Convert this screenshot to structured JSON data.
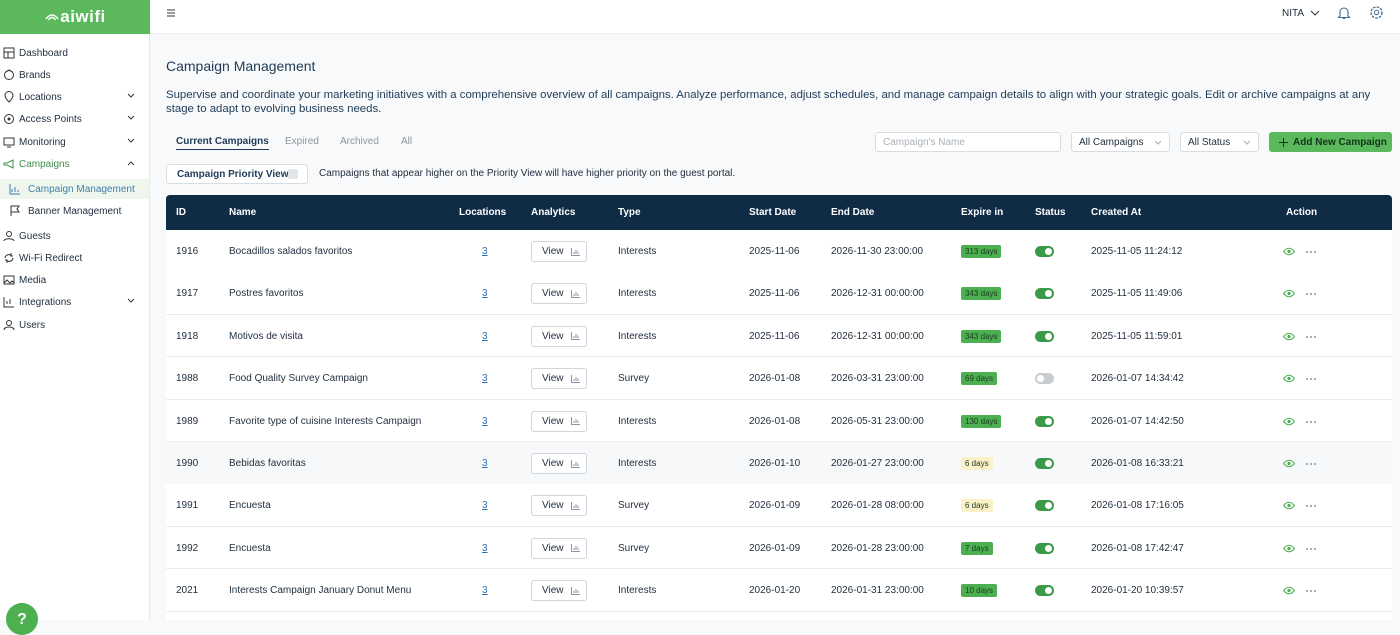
{
  "sidebar": {
    "logo": "aiwifi",
    "items": [
      "Dashboard",
      "Brands",
      "Locations",
      "Access Points",
      "Monitoring",
      "Campaigns",
      "Campaign Management",
      "Banner Management",
      "Guests",
      "Wi-Fi Redirect",
      "Media",
      "Integrations",
      "Users"
    ]
  },
  "topbar": {
    "user": "NITA"
  },
  "header": {
    "title": "Campaign Management",
    "description": "Supervise and coordinate your marketing initiatives with a comprehensive overview of all campaigns. Analyze performance, adjust schedules, and manage campaign details to align with your strategic goals. Edit or archive campaigns at any stage to adapt to evolving business needs."
  },
  "tabs": [
    "Current Campaigns",
    "Expired",
    "Archived",
    "All"
  ],
  "filters": {
    "search_placeholder": "Campaign's Name",
    "campaign_select": "All Campaigns",
    "status_select": "All Status",
    "add_button": "Add New Campaign"
  },
  "priority": {
    "button": "Campaign Priority View",
    "note": "Campaigns that appear higher on the Priority View will have higher priority on the guest portal."
  },
  "table": {
    "columns": [
      "ID",
      "Name",
      "Locations",
      "Analytics",
      "Type",
      "Start Date",
      "End Date",
      "Expire in",
      "Status",
      "Created At",
      "Action"
    ],
    "rows": [
      {
        "id": 1916,
        "name": "Bocadillos salados favoritos",
        "locations": 3,
        "analytics": "View",
        "type": "Interests",
        "start": "2025-11-06",
        "end": "2026-11-30 23:00:00",
        "expire": "313 days",
        "expire_color": "#4caf50",
        "status": true,
        "created": "2025-11-05 11:24:12"
      },
      {
        "id": 1917,
        "name": "Postres favoritos",
        "locations": 3,
        "analytics": "View",
        "type": "Interests",
        "start": "2025-11-06",
        "end": "2026-12-31 00:00:00",
        "expire": "343 days",
        "expire_color": "#4caf50",
        "status": true,
        "created": "2025-11-05 11:49:06"
      },
      {
        "id": 1918,
        "name": "Motivos de visita",
        "locations": 3,
        "analytics": "View",
        "type": "Interests",
        "start": "2025-11-06",
        "end": "2026-12-31 00:00:00",
        "expire": "343 days",
        "expire_color": "#4caf50",
        "status": true,
        "created": "2025-11-05 11:59:01"
      },
      {
        "id": 1988,
        "name": "Food Quality Survey Campaign",
        "locations": 3,
        "analytics": "View",
        "type": "Survey",
        "start": "2026-01-08",
        "end": "2026-03-31 23:00:00",
        "expire": "69 days",
        "expire_color": "#4caf50",
        "status": false,
        "created": "2026-01-07 14:34:42"
      },
      {
        "id": 1989,
        "name": "Favorite type of cuisine Interests Campaign",
        "locations": 3,
        "analytics": "View",
        "type": "Interests",
        "start": "2026-01-08",
        "end": "2026-05-31 23:00:00",
        "expire": "130 days",
        "expire_color": "#4caf50",
        "status": true,
        "created": "2026-01-07 14:42:50"
      },
      {
        "id": 1990,
        "name": "Bebidas favoritas",
        "locations": 3,
        "analytics": "View",
        "type": "Interests",
        "start": "2026-01-10",
        "end": "2026-01-27 23:00:00",
        "expire": "6 days",
        "expire_color": "#fbf1c7",
        "status": true,
        "created": "2026-01-08 16:33:21"
      },
      {
        "id": 1991,
        "name": "Encuesta",
        "locations": 3,
        "analytics": "View",
        "type": "Survey",
        "start": "2026-01-09",
        "end": "2026-01-28 08:00:00",
        "expire": "6 days",
        "expire_color": "#fbf1c7",
        "status": true,
        "created": "2026-01-08 17:16:05"
      },
      {
        "id": 1992,
        "name": "Encuesta",
        "locations": 3,
        "analytics": "View",
        "type": "Survey",
        "start": "2026-01-09",
        "end": "2026-01-28 23:00:00",
        "expire": "7 days",
        "expire_color": "#4caf50",
        "status": true,
        "created": "2026-01-08 17:42:47"
      },
      {
        "id": 2021,
        "name": "Interests Campaign January Donut Menu",
        "locations": 3,
        "analytics": "View",
        "type": "Interests",
        "start": "2026-01-20",
        "end": "2026-01-31 23:00:00",
        "expire": "10 days",
        "expire_color": "#4caf50",
        "status": true,
        "created": "2026-01-20 10:39:57"
      }
    ]
  },
  "help": "?"
}
